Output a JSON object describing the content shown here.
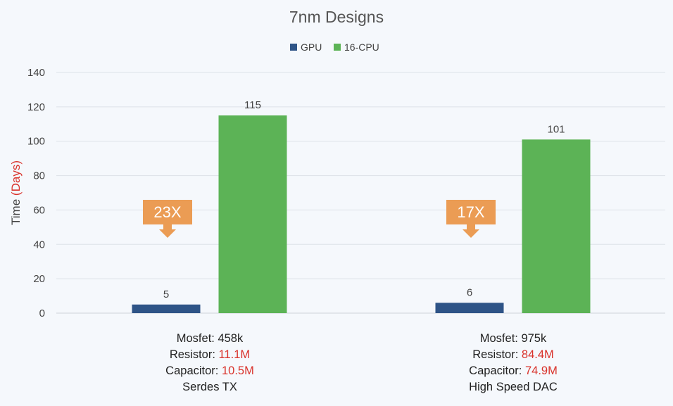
{
  "chart_data": {
    "type": "bar",
    "title": "7nm Designs",
    "ylabel": "Time",
    "ylabel_accent": "(Days)",
    "ylim": [
      0,
      140
    ],
    "yticks": [
      0,
      20,
      40,
      60,
      80,
      100,
      120,
      140
    ],
    "grid": true,
    "legend_position": "top-center",
    "categories": [
      "Serdes TX",
      "High Speed DAC"
    ],
    "category_details": [
      {
        "mosfet_label": "Mosfet:",
        "mosfet": "458k",
        "resistor_label": "Resistor:",
        "resistor": "11.1M",
        "capacitor_label": "Capacitor:",
        "capacitor": "10.5M",
        "name": "Serdes TX"
      },
      {
        "mosfet_label": "Mosfet:",
        "mosfet": "975k",
        "resistor_label": "Resistor:",
        "resistor": "84.4M",
        "capacitor_label": "Capacitor:",
        "capacitor": "74.9M",
        "name": "High Speed DAC"
      }
    ],
    "series": [
      {
        "name": "GPU",
        "values": [
          5,
          6
        ],
        "color": "#2e5487"
      },
      {
        "name": "16-CPU",
        "values": [
          115,
          101
        ],
        "color": "#5cb356"
      }
    ],
    "annotations": [
      "23X",
      "17X"
    ],
    "annotation_color": "#eb9c54",
    "highlight_color": "#d9322b"
  }
}
